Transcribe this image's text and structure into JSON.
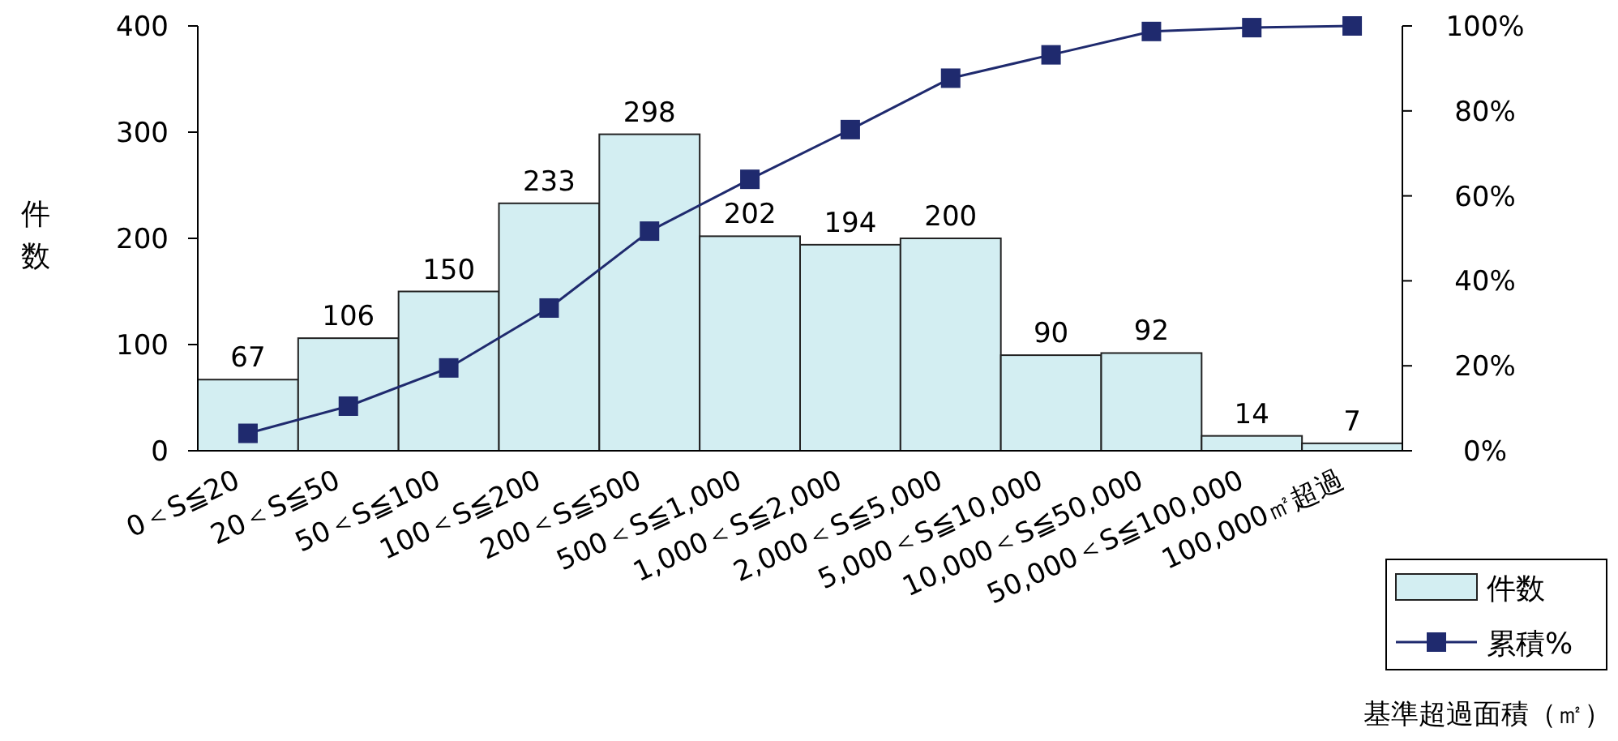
{
  "chart_data": {
    "type": "bar",
    "xlabel": "基準超過面積（㎡）",
    "ylabel": "件数",
    "categories": [
      "0＜S≦20",
      "20＜S≦50",
      "50＜S≦100",
      "100＜S≦200",
      "200＜S≦500",
      "500＜S≦1,000",
      "1,000＜S≦2,000",
      "2,000＜S≦5,000",
      "5,000＜S≦10,000",
      "10,000＜S≦50,000",
      "50,000＜S≦100,000",
      "100,000㎡超過"
    ],
    "series": [
      {
        "name": "件数",
        "type": "bar",
        "color": "#d3eef2",
        "values": [
          67,
          106,
          150,
          233,
          298,
          202,
          194,
          200,
          90,
          92,
          14,
          7
        ],
        "value_labels": [
          "67",
          "106",
          "150",
          "233",
          "298",
          "202",
          "194",
          "200",
          "90",
          "92",
          "14",
          "7"
        ]
      },
      {
        "name": "累積%",
        "type": "line",
        "axis": "y2",
        "color": "#1f2a6e",
        "values": [
          4.1,
          10.5,
          19.5,
          33.6,
          51.7,
          63.9,
          75.6,
          87.7,
          93.2,
          98.7,
          99.6,
          100
        ]
      }
    ],
    "ylim": [
      0,
      400
    ],
    "yticks": [
      0,
      100,
      200,
      300,
      400
    ],
    "y2lim": [
      0,
      100
    ],
    "y2ticks": [
      {
        "value": 0,
        "label": "0%"
      },
      {
        "value": 20,
        "label": "20%"
      },
      {
        "value": 40,
        "label": "40%"
      },
      {
        "value": 60,
        "label": "60%"
      },
      {
        "value": 80,
        "label": "80%"
      },
      {
        "value": 100,
        "label": "100%"
      }
    ],
    "marker": "square",
    "legend": "bottom right"
  }
}
